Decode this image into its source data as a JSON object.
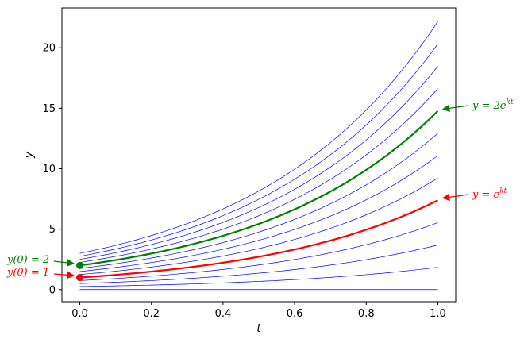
{
  "chart_data": {
    "type": "line",
    "xlabel": "t",
    "ylabel": "y",
    "xlim": [
      -0.05,
      1.05
    ],
    "ylim": [
      -1.0,
      23.3
    ],
    "grid": false,
    "k": 2.0,
    "x": [
      0.0,
      0.2,
      0.4,
      0.6,
      0.8,
      1.0
    ],
    "x_ticks": [
      "0.0",
      "0.2",
      "0.4",
      "0.6",
      "0.8",
      "1.0"
    ],
    "y_ticks": [
      "0",
      "5",
      "10",
      "15",
      "20"
    ],
    "family_color": "#0000ff",
    "family_initial_values": [
      0.0,
      0.25,
      0.5,
      0.75,
      1.25,
      1.5,
      1.75,
      2.25,
      2.5,
      2.75,
      3.0
    ],
    "series": [
      {
        "label": "y = e^{kt}",
        "initial_value": 1,
        "color": "#ff0000",
        "values": [
          1.0,
          1.49,
          2.23,
          3.32,
          4.95,
          7.39
        ]
      },
      {
        "label": "y = 2e^{kt}",
        "initial_value": 2,
        "color": "#008000",
        "values": [
          2.0,
          2.98,
          4.45,
          6.64,
          9.91,
          14.78
        ]
      }
    ],
    "annotations": {
      "red_curve": {
        "prefix": "y = e",
        "superscript": "kt"
      },
      "green_curve": {
        "prefix": "y = 2e",
        "superscript": "kt"
      },
      "red_point": "y(0) = 1",
      "green_point": "y(0) = 2"
    }
  }
}
